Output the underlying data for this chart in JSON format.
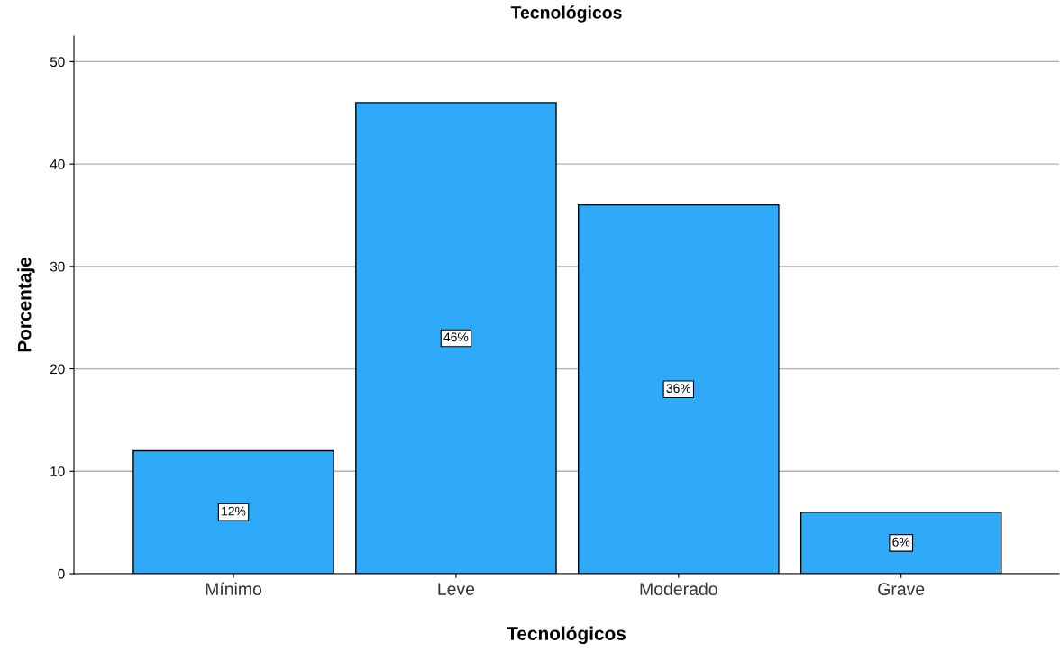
{
  "chart_data": {
    "type": "bar",
    "title": "Tecnológicos",
    "xlabel": "Tecnológicos",
    "ylabel": "Porcentaje",
    "categories": [
      "Mínimo",
      "Leve",
      "Moderado",
      "Grave"
    ],
    "values": [
      12,
      46,
      36,
      6
    ],
    "value_labels": [
      "12%",
      "46%",
      "36%",
      "6%"
    ],
    "color": "#2eaaf9",
    "ylim": [
      0,
      52.5
    ],
    "yticks": [
      0,
      10,
      20,
      30,
      40,
      50
    ],
    "grid": "y"
  }
}
